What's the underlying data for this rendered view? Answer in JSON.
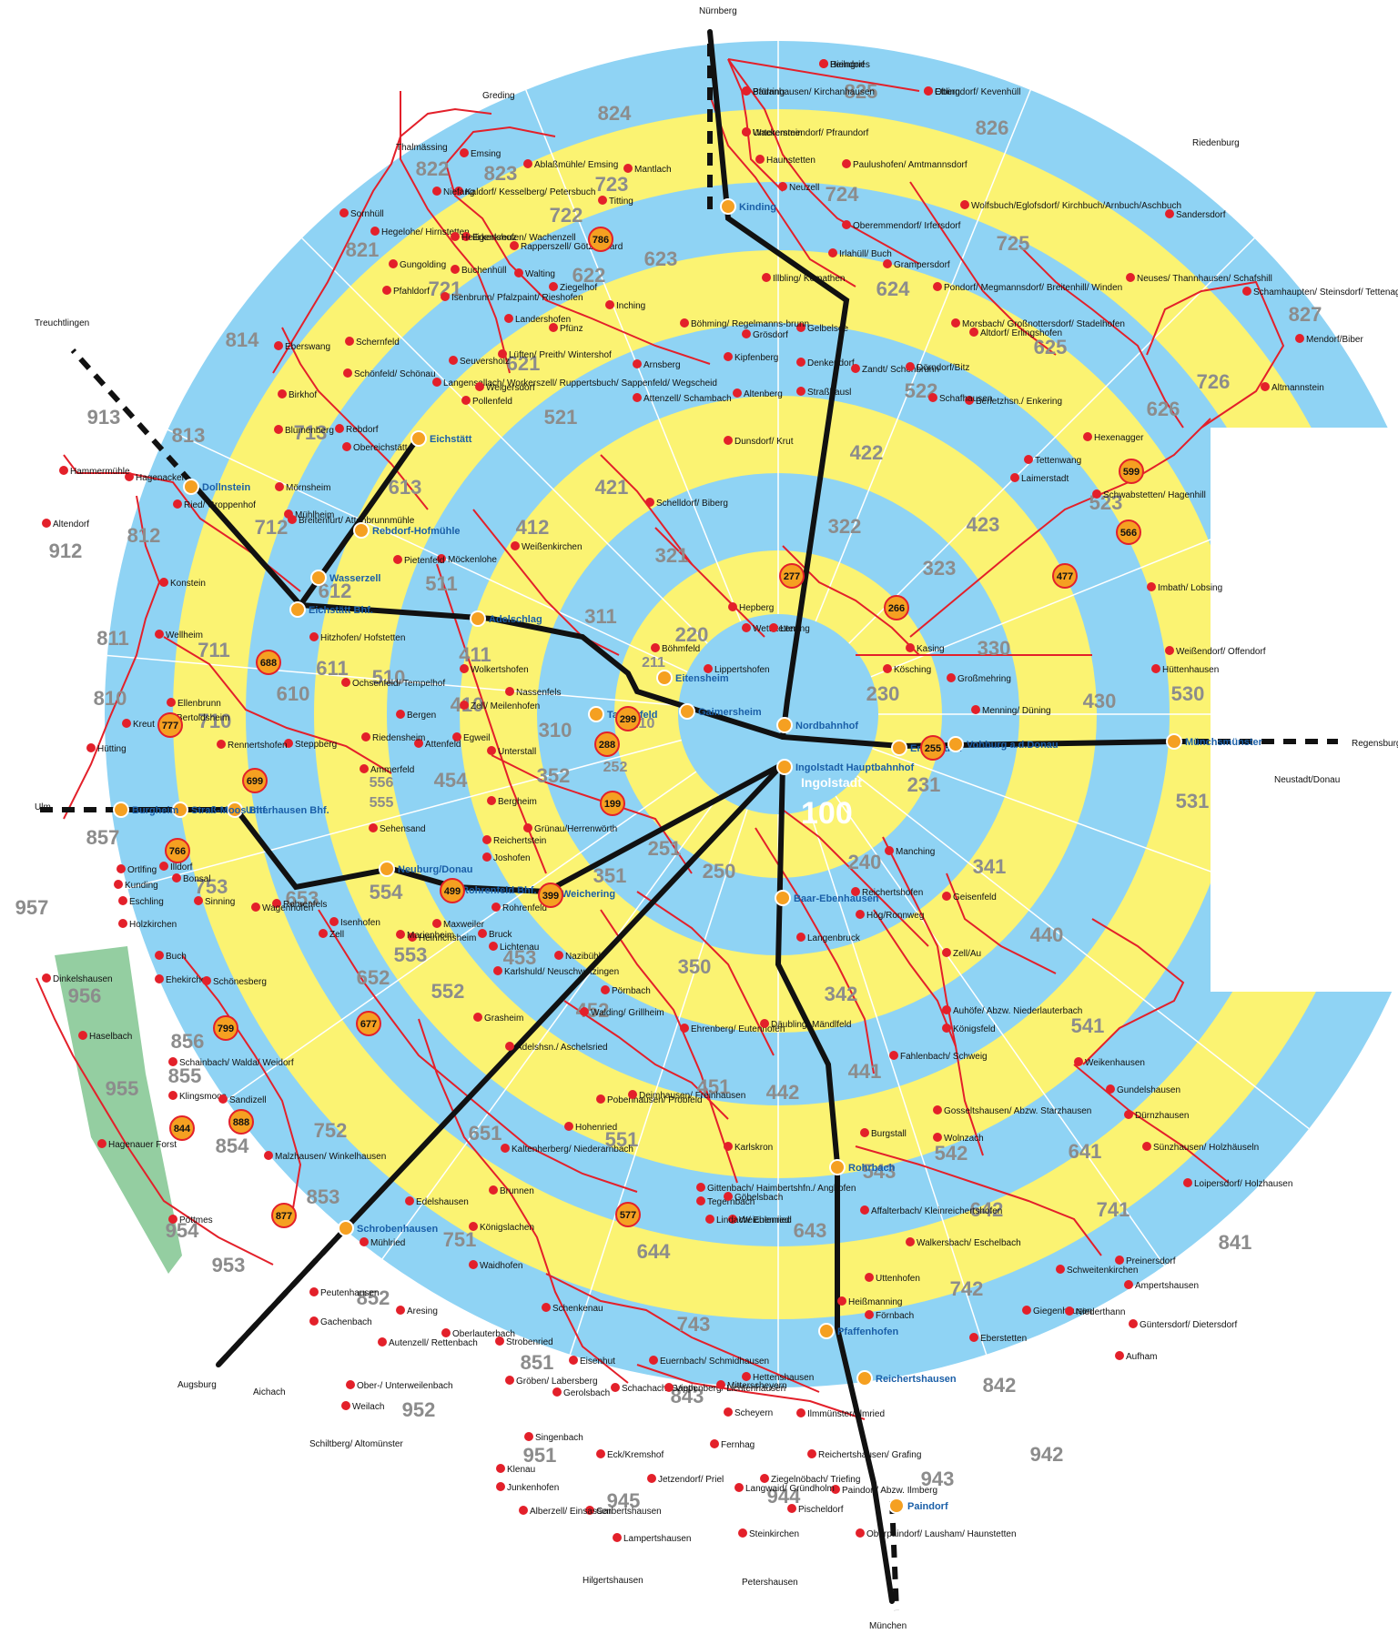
{
  "center": {
    "name": "Ingolstadt",
    "zone": "100"
  },
  "colors": {
    "blue": "#8fd3f4",
    "yellow": "#fbf372",
    "green": "#94cea1",
    "line": "#e3202a",
    "rail": "#111111",
    "hub": "#f5a021",
    "hub_text": "#1a5fa8"
  },
  "zones": [
    {
      "n": "211"
    },
    {
      "n": "220"
    },
    {
      "n": "210"
    },
    {
      "n": "230"
    },
    {
      "n": "231"
    },
    {
      "n": "240"
    },
    {
      "n": "250"
    },
    {
      "n": "251"
    },
    {
      "n": "252"
    },
    {
      "n": "311"
    },
    {
      "n": "310"
    },
    {
      "n": "321"
    },
    {
      "n": "322"
    },
    {
      "n": "323"
    },
    {
      "n": "330"
    },
    {
      "n": "341"
    },
    {
      "n": "342"
    },
    {
      "n": "350"
    },
    {
      "n": "351"
    },
    {
      "n": "352"
    },
    {
      "n": "410"
    },
    {
      "n": "411"
    },
    {
      "n": "412"
    },
    {
      "n": "421"
    },
    {
      "n": "422"
    },
    {
      "n": "423"
    },
    {
      "n": "430"
    },
    {
      "n": "440"
    },
    {
      "n": "441"
    },
    {
      "n": "442"
    },
    {
      "n": "451"
    },
    {
      "n": "452"
    },
    {
      "n": "453"
    },
    {
      "n": "454"
    },
    {
      "n": "510"
    },
    {
      "n": "511"
    },
    {
      "n": "521"
    },
    {
      "n": "522"
    },
    {
      "n": "523"
    },
    {
      "n": "530"
    },
    {
      "n": "531"
    },
    {
      "n": "541"
    },
    {
      "n": "542"
    },
    {
      "n": "543"
    },
    {
      "n": "551"
    },
    {
      "n": "552"
    },
    {
      "n": "553"
    },
    {
      "n": "554"
    },
    {
      "n": "555"
    },
    {
      "n": "556"
    },
    {
      "n": "610"
    },
    {
      "n": "611"
    },
    {
      "n": "612"
    },
    {
      "n": "613"
    },
    {
      "n": "621"
    },
    {
      "n": "622"
    },
    {
      "n": "623"
    },
    {
      "n": "624"
    },
    {
      "n": "625"
    },
    {
      "n": "626"
    },
    {
      "n": "641"
    },
    {
      "n": "642"
    },
    {
      "n": "643"
    },
    {
      "n": "644"
    },
    {
      "n": "651"
    },
    {
      "n": "652"
    },
    {
      "n": "653"
    },
    {
      "n": "710"
    },
    {
      "n": "711"
    },
    {
      "n": "712"
    },
    {
      "n": "713"
    },
    {
      "n": "721"
    },
    {
      "n": "722"
    },
    {
      "n": "723"
    },
    {
      "n": "724"
    },
    {
      "n": "725"
    },
    {
      "n": "726"
    },
    {
      "n": "741"
    },
    {
      "n": "742"
    },
    {
      "n": "743"
    },
    {
      "n": "751"
    },
    {
      "n": "752"
    },
    {
      "n": "753"
    },
    {
      "n": "810"
    },
    {
      "n": "811"
    },
    {
      "n": "812"
    },
    {
      "n": "813"
    },
    {
      "n": "814"
    },
    {
      "n": "821"
    },
    {
      "n": "822"
    },
    {
      "n": "823"
    },
    {
      "n": "824"
    },
    {
      "n": "825"
    },
    {
      "n": "826"
    },
    {
      "n": "827"
    },
    {
      "n": "841"
    },
    {
      "n": "842"
    },
    {
      "n": "843"
    },
    {
      "n": "851"
    },
    {
      "n": "852"
    },
    {
      "n": "853"
    },
    {
      "n": "854"
    },
    {
      "n": "855"
    },
    {
      "n": "856"
    },
    {
      "n": "857"
    },
    {
      "n": "912"
    },
    {
      "n": "913"
    },
    {
      "n": "942"
    },
    {
      "n": "943"
    },
    {
      "n": "944"
    },
    {
      "n": "945"
    },
    {
      "n": "951"
    },
    {
      "n": "952"
    },
    {
      "n": "953"
    },
    {
      "n": "954"
    },
    {
      "n": "955"
    },
    {
      "n": "956"
    },
    {
      "n": "957"
    }
  ],
  "hubs": [
    {
      "name": "Nordbahnhof"
    },
    {
      "name": "Ingolstadt Hauptbahnhof"
    },
    {
      "name": "Eitensheim"
    },
    {
      "name": "Gaimersheim"
    },
    {
      "name": "Tauberfeld"
    },
    {
      "name": "Adelschlag"
    },
    {
      "name": "Eichstätt Bhf."
    },
    {
      "name": "Wasserzell"
    },
    {
      "name": "Rebdorf-Hofmühle"
    },
    {
      "name": "Eichstätt"
    },
    {
      "name": "Dollnstein"
    },
    {
      "name": "Kinding"
    },
    {
      "name": "Ernsgaden"
    },
    {
      "name": "Vohburg a.d.Donau"
    },
    {
      "name": "Münchsmünster"
    },
    {
      "name": "Baar-Ebenhausen"
    },
    {
      "name": "Rohrbach"
    },
    {
      "name": "Pfaffenhofen"
    },
    {
      "name": "Reichertshausen"
    },
    {
      "name": "Paindorf"
    },
    {
      "name": "Weichering"
    },
    {
      "name": "Rohrenfeld Bhf."
    },
    {
      "name": "Neuburg/Donau"
    },
    {
      "name": "Unterhausen Bhf."
    },
    {
      "name": "Straß-Moos Bhf."
    },
    {
      "name": "Burgheim"
    },
    {
      "name": "Schrobenhausen"
    }
  ],
  "badges": [
    {
      "n": "277",
      "place": "Stammham/ Appertshofen"
    },
    {
      "n": "266",
      "place": "Bettbrunn"
    },
    {
      "n": "477",
      "place": "Ober-/ Unterdolling"
    },
    {
      "n": "566",
      "place": "Hagenstetten"
    },
    {
      "n": "599",
      "place": "Mindelstetten"
    },
    {
      "n": "786",
      "place": "Schlößlmühle"
    },
    {
      "n": "688",
      "place": "Biesenhard/ Hard"
    },
    {
      "n": "777",
      "place": "Gammersfeld"
    },
    {
      "n": "699",
      "place": "Oberhausen/ Unterhausen"
    },
    {
      "n": "766",
      "place": "Straß/ Moos"
    },
    {
      "n": "799",
      "place": "Ludwigsmoos"
    },
    {
      "n": "844",
      "place": "Grimolzhausen"
    },
    {
      "n": "888",
      "place": "Langenmosen"
    },
    {
      "n": "877",
      "place": "Steingriff"
    },
    {
      "n": "499",
      "place": "Rohrenfeld"
    },
    {
      "n": "399",
      "place": "Weichering"
    },
    {
      "n": "299",
      "place": "Eitensheim"
    },
    {
      "n": "288",
      "place": "Buxheim"
    },
    {
      "n": "199",
      "place": "Irgertsheim"
    },
    {
      "n": "255",
      "place": "Ernsgaden"
    },
    {
      "n": "577",
      "place": "Hohenwart"
    },
    {
      "n": "677",
      "place": "Stengelheim"
    }
  ],
  "stops": [
    "Beilngries",
    "Oberndorf/ Kevenhüll",
    "Badanhausen/ Kirchanhausen",
    "Unteremmendorf/ Pfraundorf",
    "Haunstetten",
    "Paulushofen/ Amtmannsdorf",
    "Neuzell",
    "Wolfsbuch/Eglofsdorf/ Kirchbuch/Arnbuch/Aschbuch",
    "Oberemmendorf/ Irfersdorf",
    "Irlahüll/ Buch",
    "Grampersdorf",
    "Illbling/ Kemathen",
    "Gelbelsee",
    "Pondorf/ Megmannsdorf/ Breitenhill/ Winden",
    "Grösdorf",
    "Kipfenberg",
    "Denkendorf",
    "Zandt/ Schönbrunn",
    "Dörndorf/Bitz",
    "Böhming/ Regelmanns-brunn",
    "Altenberg",
    "Straßhausl",
    "Arnsberg",
    "Attenzell/ Schambach",
    "Dunsdorf/ Krut",
    "Schelldorf/ Biberg",
    "Wettstetten",
    "Lenting",
    "Hepberg",
    "Böhmfeld",
    "Lippertshofen",
    "Kösching",
    "Kasing",
    "Großmehring",
    "Menning/ Düning",
    "Manching",
    "Reichertshofen",
    "Hög/Ronnweg",
    "Langenbruck",
    "Geisenfeld",
    "Zell/Au",
    "Auhöfe/ Abzw. Niederlauterbach",
    "Königsfeld",
    "Fahlenbach/ Schweig",
    "Gosseltshausen/ Abzw. Starzhausen",
    "Wolnzach",
    "Burgstall",
    "Affalterbach/ Kleinreichertshofen",
    "Walkersbach/ Eschelbach",
    "Uttenhofen",
    "Heißmanning",
    "Förnbach",
    "Eberstetten",
    "Giegenhausen",
    "Schweitenkirchen",
    "Niederthann",
    "Preinersdorf",
    "Loipersdorf/ Holzhausen",
    "Weikenhausen",
    "Gundelshausen",
    "Dürnzhausen",
    "Sünzhausen/ Holzhäuseln",
    "Ampertshausen",
    "Güntersdorf/ Dietersdorf",
    "Aufham",
    "Hettenshausen",
    "Ilmmünster/ Ilmried",
    "Reichertshausen/ Grafing",
    "Paindorf/ Abzw. Ilmberg",
    "Pischeldorf",
    "Oberpaindorf/ Lausham/ Haunstetten",
    "Steinkirchen",
    "Langwaid/ Gründholm",
    "Ziegelnöbach/ Triefing",
    "Jetzendorf/ Priel",
    "Eck/Kremshof",
    "Lampertshausen",
    "Garbertshausen",
    "Alberzell/ Einsassen",
    "Junkenhofen",
    "Klenau",
    "Singenbach",
    "Gerolsbach",
    "Schachach/ Sappenberg/ Lichtenhausen",
    "Fernhag",
    "Scheyern",
    "Mitterscheyern",
    "Vieth",
    "Euernbach/ Schmidhausen",
    "Eisenhut",
    "Gröben/ Labersberg",
    "Strobenried",
    "Oberlauterbach",
    "Aresing",
    "Autenzell/ Rettenbach",
    "Ober-/ Unterweilenbach",
    "Weilach",
    "Peutenhausen",
    "Gachenbach",
    "Mühlried",
    "Waidhofen",
    "Schenkenau",
    "Königslachen",
    "Edelshausen",
    "Brunnen",
    "Kaltenherberg/ Niederarnbach",
    "Hohenried",
    "Pobenhausen/ Probfeld",
    "Deimhausen/ Freinhausen",
    "Karlskron",
    "Weichenried",
    "Gittenbach/ Haimbertshfn./ Angkofen",
    "Tegernbach",
    "Lindach/ Eulenried",
    "Göbelsbach",
    "Ehrenberg/ Eutenhofen",
    "Däubling/ Mändlfeld",
    "Pörnbach",
    "Walding/ Grillheim",
    "Adelshsn./ Aschelsried",
    "Grasheim",
    "Karlshuld/ Neuschwetzingen",
    "Nazibühl",
    "Lichtenau",
    "Bruck",
    "Rohrenfeld",
    "Maxweiler",
    "Heinrichsheim",
    "Marienheim",
    "Zell",
    "Isenhofen",
    "Rohrenfels",
    "Wagenhofen",
    "Sinning",
    "Bonsal",
    "Illdorf",
    "Ortlfing",
    "Kunding",
    "Eschling",
    "Holzkirchen",
    "Buch",
    "Ehekirchen",
    "Schönesberg",
    "Dinkelshausen",
    "Haselbach",
    "Schainbach/ Walda/ Weidorf",
    "Klingsmoos",
    "Sandizell",
    "Malzhausen/ Winkelhausen",
    "Hagenauer Forst",
    "Pöttmes",
    "Reichertstein",
    "Joshofen",
    "Grünau/Herrenwörth",
    "Bergheim",
    "Unterstall",
    "Egweil",
    "Zell/ Meilenhofen",
    "Nassenfels",
    "Wolkertshofen",
    "Möckenlohe",
    "Pietenfeld",
    "Weißenkirchen",
    "Hitzhofen/ Hofstetten",
    "Ochsenfeld/ Tempelhof",
    "Bergen",
    "Attenfeld",
    "Riedensheim",
    "Steppberg",
    "Rennertshofen",
    "Bertoldsheim",
    "Ellenbrunn",
    "Hütting",
    "Ammerfeld",
    "Sehensand",
    "Kreut",
    "Wellheim",
    "Konstein",
    "Ried/ Groppenhof",
    "Hagenacker",
    "Hammermühle",
    "Altendorf",
    "Mörnsheim",
    "Mühlheim",
    "Breitenfurt/ Attenbrunnmühle",
    "Obereichstätt",
    "Rebdorf",
    "Blumenberg",
    "Birkhof",
    "Eberswang",
    "Schönfeld/ Schönau",
    "Schernfeld",
    "Langensallach/ Workerszell/ Ruppertsbuch/ Sappenfeld/ Wegscheid",
    "Seuversholz",
    "Pollenfeld",
    "Weigersdorf",
    "Lüften/ Preith/ Wintershof",
    "Landershofen",
    "Pfünz",
    "Ziegelhof",
    "Inching",
    "Walting",
    "Buchenhüll",
    "Isenbrunn/ Pfalzpaint/ Rieshofen",
    "Gungolding",
    "Pfahldorf",
    "Hegelohe/ Hirnstetten",
    "Sornhüll",
    "Rapperszell/ Götzelshard",
    "Erkertshofen/ Wachenzell",
    "Heiligenkreuz",
    "Kaldorf/ Kesselberg/ Petersbuch",
    "Niefang",
    "Emsing",
    "Ablaßmühle/ Emsing",
    "Titting",
    "Mantlach",
    "Morsbach/ Großnottersdorf/ Stadelhofen",
    "Altdorf/ Erlingshofen",
    "Berletzhsn./ Enkering",
    "Schafhausen",
    "Neuses/ Thannhausen/ Schafshill",
    "Sandersdorf",
    "Schamhaupten/ Steinsdorf/ Tettenagger",
    "Mendorf/Biber",
    "Altmannstein",
    "Hexenagger",
    "Tettenwang",
    "Laimerstadt",
    "Schwabstetten/ Hagenhill",
    "Imbath/ Lobsing",
    "Weißendorf/ Offendorf",
    "Hüttenhausen",
    "Hiendorf",
    "Ettling",
    "Pförring",
    "Wackerstein"
  ],
  "external": [
    {
      "name": "Nürnberg"
    },
    {
      "name": "Regensburg"
    },
    {
      "name": "Neustadt/Donau"
    },
    {
      "name": "München"
    },
    {
      "name": "Augsburg"
    },
    {
      "name": "Ulm"
    },
    {
      "name": "Treuchtlingen"
    },
    {
      "name": "Greding"
    },
    {
      "name": "Thalmässing"
    },
    {
      "name": "Riedenburg"
    },
    {
      "name": "Aichach"
    },
    {
      "name": "Schiltberg/ Altomünster"
    },
    {
      "name": "Hilgertshausen"
    },
    {
      "name": "Petershausen"
    }
  ]
}
